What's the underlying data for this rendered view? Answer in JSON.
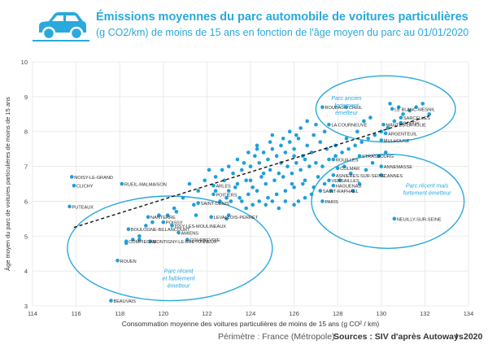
{
  "header": {
    "title": "Émissions moyennes du parc automobile de voitures particulières",
    "subtitle": "(g CO2/km) de moins de 15 ans en fonction de l'âge moyen du parc au 01/01/2020",
    "icon": "car-icon"
  },
  "footer": {
    "perimeter": "Périmètre : France (Métropole)",
    "source": "Sources : SIV d'après Autoways",
    "separator": "I",
    "year": "2020"
  },
  "colors": {
    "accent": "#29a9dc",
    "point": "#1f9fd8",
    "text": "#333333"
  },
  "chart_data": {
    "type": "scatter",
    "xlabel": "Consommation moyenne des voitures particulières de moins de 15 ans (g CO² / km)",
    "ylabel": "Âge moyen du parc de voitures particulières de moins de 15 ans",
    "xlim": [
      114,
      134
    ],
    "ylim": [
      3,
      10
    ],
    "xticks": [
      114,
      116,
      118,
      120,
      122,
      124,
      126,
      128,
      130,
      132,
      134
    ],
    "yticks": [
      3,
      4,
      5,
      6,
      7,
      8,
      9,
      10
    ],
    "grid": true,
    "trendline": {
      "style": "dashed",
      "from": [
        115.9,
        5.25
      ],
      "to": [
        132.2,
        8.45
      ]
    },
    "annotations": [
      {
        "text_lines": [
          "Parc ancien",
          "fortement",
          "émetteur"
        ],
        "x": 128.4,
        "y": 8.9
      },
      {
        "text_lines": [
          "Parc récent mais",
          "fortement émetteur"
        ],
        "x": 132.1,
        "y": 6.4
      },
      {
        "text_lines": [
          "Parc récent",
          "et faiblement",
          "émetteur"
        ],
        "x": 120.7,
        "y": 3.95
      }
    ],
    "ellipses": [
      {
        "cx": 130.2,
        "cy": 8.65,
        "rx": 3.2,
        "ry": 0.95
      },
      {
        "cx": 130.3,
        "cy": 6.0,
        "rx": 3.5,
        "ry": 1.35
      },
      {
        "cx": 120.3,
        "cy": 4.65,
        "rx": 4.7,
        "ry": 1.5
      }
    ],
    "labeled_points": [
      {
        "name": "NOISY-LE-GRAND",
        "x": 115.8,
        "y": 6.7
      },
      {
        "name": "CLICHY",
        "x": 115.9,
        "y": 6.45
      },
      {
        "name": "RUEIL-MALMAISON",
        "x": 118.1,
        "y": 6.5
      },
      {
        "name": "PUTEAUX",
        "x": 115.7,
        "y": 5.85
      },
      {
        "name": "NANTERRE",
        "x": 119.3,
        "y": 5.55
      },
      {
        "name": "POISSY",
        "x": 120.0,
        "y": 5.4
      },
      {
        "name": "SAINT-DENIS",
        "x": 121.6,
        "y": 5.95
      },
      {
        "name": "LEVALLOIS-PERRET",
        "x": 122.2,
        "y": 5.55
      },
      {
        "name": "BOULOGNE-BILLANCOURT",
        "x": 118.4,
        "y": 5.2
      },
      {
        "name": "ISSY-LES-MOULINEAUX",
        "x": 120.4,
        "y": 5.3
      },
      {
        "name": "AMIENS",
        "x": 120.7,
        "y": 5.1
      },
      {
        "name": "COURBEVOIE",
        "x": 121.1,
        "y": 4.9
      },
      {
        "name": "COMPIEGNE",
        "x": 118.3,
        "y": 4.85
      },
      {
        "name": "MONTIGNY-LE-BRETONNEUX",
        "x": 119.4,
        "y": 4.85
      },
      {
        "name": "ROUEN",
        "x": 117.9,
        "y": 4.3
      },
      {
        "name": "BEAUVAIS",
        "x": 117.6,
        "y": 3.15
      },
      {
        "name": "ARLES",
        "x": 122.3,
        "y": 6.45
      },
      {
        "name": "POITIERS",
        "x": 122.3,
        "y": 6.2
      },
      {
        "name": "ROUBAIX",
        "x": 127.3,
        "y": 8.7
      },
      {
        "name": "CREIL",
        "x": 128.4,
        "y": 8.7
      },
      {
        "name": "LE BLANC-MESNIL",
        "x": 130.5,
        "y": 8.65
      },
      {
        "name": "LA COURNEUVE",
        "x": 127.6,
        "y": 8.2
      },
      {
        "name": "SARCELLES",
        "x": 130.9,
        "y": 8.4
      },
      {
        "name": "BONDY",
        "x": 130.9,
        "y": 8.25
      },
      {
        "name": "MANTES-LA-JOLIE",
        "x": 130.1,
        "y": 8.2
      },
      {
        "name": "ARGENTEUIL",
        "x": 130.2,
        "y": 7.95
      },
      {
        "name": "MULHOUSE",
        "x": 130.0,
        "y": 7.75
      },
      {
        "name": "ROUILLES",
        "x": 127.8,
        "y": 7.2
      },
      {
        "name": "STRASBOURG",
        "x": 129.0,
        "y": 7.3
      },
      {
        "name": "COLMAR",
        "x": 128.0,
        "y": 6.95
      },
      {
        "name": "ASNIERES-SUR-SEINE",
        "x": 127.8,
        "y": 6.75
      },
      {
        "name": "VERSAILLES",
        "x": 127.6,
        "y": 6.6
      },
      {
        "name": "ANNEMASSE",
        "x": 130.0,
        "y": 7.0
      },
      {
        "name": "HAGUENAU",
        "x": 127.8,
        "y": 6.45
      },
      {
        "name": "CANNES",
        "x": 130.0,
        "y": 6.75
      },
      {
        "name": "SAINT-RAPHAEL",
        "x": 127.2,
        "y": 6.3
      },
      {
        "name": "PARIS",
        "x": 127.3,
        "y": 6.0
      },
      {
        "name": "NEUILLY-SUR-SEINE",
        "x": 130.6,
        "y": 5.5
      }
    ],
    "points": [
      [
        123.0,
        6.3
      ],
      [
        123.4,
        6.5
      ],
      [
        123.8,
        6.6
      ],
      [
        124.1,
        6.4
      ],
      [
        124.5,
        6.7
      ],
      [
        124.9,
        6.9
      ],
      [
        125.3,
        6.8
      ],
      [
        125.7,
        7.0
      ],
      [
        126.1,
        7.1
      ],
      [
        126.5,
        7.2
      ],
      [
        123.2,
        6.8
      ],
      [
        123.6,
        6.9
      ],
      [
        124.0,
        7.0
      ],
      [
        124.4,
        7.1
      ],
      [
        124.8,
        7.2
      ],
      [
        125.2,
        7.3
      ],
      [
        125.6,
        7.4
      ],
      [
        126.0,
        7.5
      ],
      [
        126.4,
        7.3
      ],
      [
        126.8,
        7.4
      ],
      [
        123.5,
        6.1
      ],
      [
        123.9,
        6.2
      ],
      [
        124.3,
        6.3
      ],
      [
        124.7,
        6.5
      ],
      [
        125.1,
        6.6
      ],
      [
        125.5,
        6.7
      ],
      [
        125.9,
        6.8
      ],
      [
        126.3,
        6.9
      ],
      [
        126.7,
        7.0
      ],
      [
        127.0,
        7.1
      ],
      [
        124.2,
        7.3
      ],
      [
        124.6,
        7.4
      ],
      [
        125.0,
        7.5
      ],
      [
        125.4,
        7.6
      ],
      [
        125.8,
        7.7
      ],
      [
        126.2,
        7.8
      ],
      [
        126.6,
        7.6
      ],
      [
        124.8,
        6.1
      ],
      [
        125.2,
        6.2
      ],
      [
        125.6,
        6.3
      ],
      [
        126.0,
        6.4
      ],
      [
        126.4,
        6.5
      ],
      [
        122.8,
        6.6
      ],
      [
        123.1,
        6.0
      ],
      [
        123.7,
        7.1
      ],
      [
        124.3,
        7.6
      ],
      [
        125.0,
        7.9
      ],
      [
        125.8,
        8.0
      ],
      [
        126.3,
        8.1
      ],
      [
        126.9,
        7.9
      ],
      [
        127.2,
        7.7
      ],
      [
        127.5,
        7.5
      ],
      [
        127.1,
        6.7
      ],
      [
        126.8,
        6.2
      ],
      [
        126.2,
        6.0
      ],
      [
        125.6,
        6.0
      ],
      [
        125.0,
        6.0
      ],
      [
        124.4,
        6.0
      ],
      [
        123.8,
        5.8
      ],
      [
        122.6,
        6.0
      ],
      [
        122.4,
        6.7
      ],
      [
        122.1,
        6.9
      ],
      [
        121.9,
        6.6
      ],
      [
        121.6,
        6.3
      ],
      [
        121.2,
        6.5
      ],
      [
        120.9,
        6.1
      ],
      [
        120.5,
        5.8
      ],
      [
        120.2,
        5.6
      ],
      [
        119.8,
        5.6
      ],
      [
        119.5,
        5.4
      ],
      [
        119.2,
        5.3
      ],
      [
        118.9,
        5.0
      ],
      [
        118.6,
        4.9
      ],
      [
        118.3,
        4.8
      ],
      [
        118.9,
        4.9
      ],
      [
        121.4,
        5.9
      ],
      [
        122.9,
        5.5
      ],
      [
        123.0,
        5.6
      ],
      [
        121.5,
        5.6
      ],
      [
        120.6,
        5.7
      ],
      [
        126.0,
        7.3
      ],
      [
        125.4,
        7.1
      ],
      [
        124.6,
        6.8
      ],
      [
        124.0,
        6.6
      ],
      [
        123.3,
        6.4
      ],
      [
        125.9,
        6.5
      ],
      [
        126.5,
        6.6
      ],
      [
        127.3,
        7.0
      ],
      [
        127.6,
        7.2
      ],
      [
        127.9,
        7.3
      ],
      [
        128.2,
        7.4
      ],
      [
        128.5,
        7.5
      ],
      [
        128.8,
        7.6
      ],
      [
        129.1,
        7.7
      ],
      [
        129.4,
        7.8
      ],
      [
        129.7,
        7.9
      ],
      [
        130.0,
        8.0
      ],
      [
        130.3,
        8.1
      ],
      [
        130.6,
        8.3
      ],
      [
        131.0,
        8.5
      ],
      [
        131.3,
        8.6
      ],
      [
        131.6,
        8.7
      ],
      [
        131.9,
        8.8
      ],
      [
        132.2,
        8.5
      ],
      [
        130.8,
        8.7
      ],
      [
        130.4,
        8.8
      ],
      [
        129.5,
        8.4
      ],
      [
        129.2,
        8.3
      ],
      [
        128.9,
        8.0
      ],
      [
        128.4,
        7.8
      ],
      [
        127.9,
        7.6
      ],
      [
        127.4,
        8.0
      ],
      [
        127.0,
        8.2
      ],
      [
        126.6,
        8.3
      ],
      [
        126.1,
        7.9
      ],
      [
        125.5,
        7.8
      ],
      [
        124.9,
        7.7
      ],
      [
        124.3,
        7.5
      ],
      [
        123.9,
        7.4
      ],
      [
        123.4,
        7.2
      ],
      [
        123.0,
        7.0
      ],
      [
        122.7,
        6.9
      ],
      [
        128.3,
        7.0
      ],
      [
        128.6,
        6.8
      ],
      [
        128.1,
        6.6
      ],
      [
        128.7,
        6.3
      ],
      [
        129.0,
        6.5
      ],
      [
        129.3,
        6.9
      ],
      [
        129.6,
        7.1
      ],
      [
        129.9,
        7.3
      ],
      [
        130.2,
        7.4
      ],
      [
        127.7,
        6.3
      ],
      [
        127.4,
        6.5
      ],
      [
        126.9,
        6.4
      ],
      [
        126.5,
        6.1
      ],
      [
        126.0,
        5.9
      ],
      [
        125.3,
        5.8
      ],
      [
        124.7,
        5.9
      ],
      [
        124.1,
        5.9
      ],
      [
        123.6,
        6.0
      ],
      [
        122.9,
        6.1
      ],
      [
        122.4,
        6.3
      ]
    ]
  }
}
